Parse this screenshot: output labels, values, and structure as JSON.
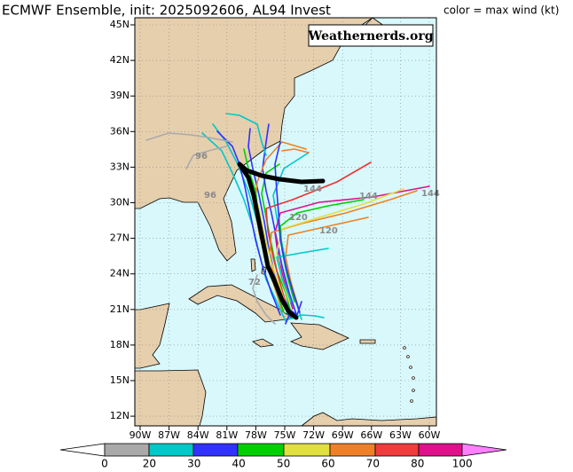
{
  "header": {
    "title": "ECMWF Ensemble, init: 2025092606, AL94 Invest",
    "legend_label": "color = max wind (kt)"
  },
  "watermark": "Weathernerds.org",
  "map": {
    "lon_labels": [
      "90W",
      "87W",
      "84W",
      "81W",
      "78W",
      "75W",
      "72W",
      "69W",
      "66W",
      "63W",
      "60W"
    ],
    "lat_labels": [
      "45N",
      "42N",
      "39N",
      "36N",
      "33N",
      "30N",
      "27N",
      "24N",
      "21N",
      "18N",
      "15N",
      "12N"
    ],
    "track_labels": [
      "144",
      "144",
      "144",
      "120",
      "120",
      "96",
      "96",
      "72"
    ]
  },
  "colorbar": {
    "labels": [
      "0",
      "20",
      "30",
      "40",
      "50",
      "60",
      "70",
      "80",
      "100"
    ]
  }
}
